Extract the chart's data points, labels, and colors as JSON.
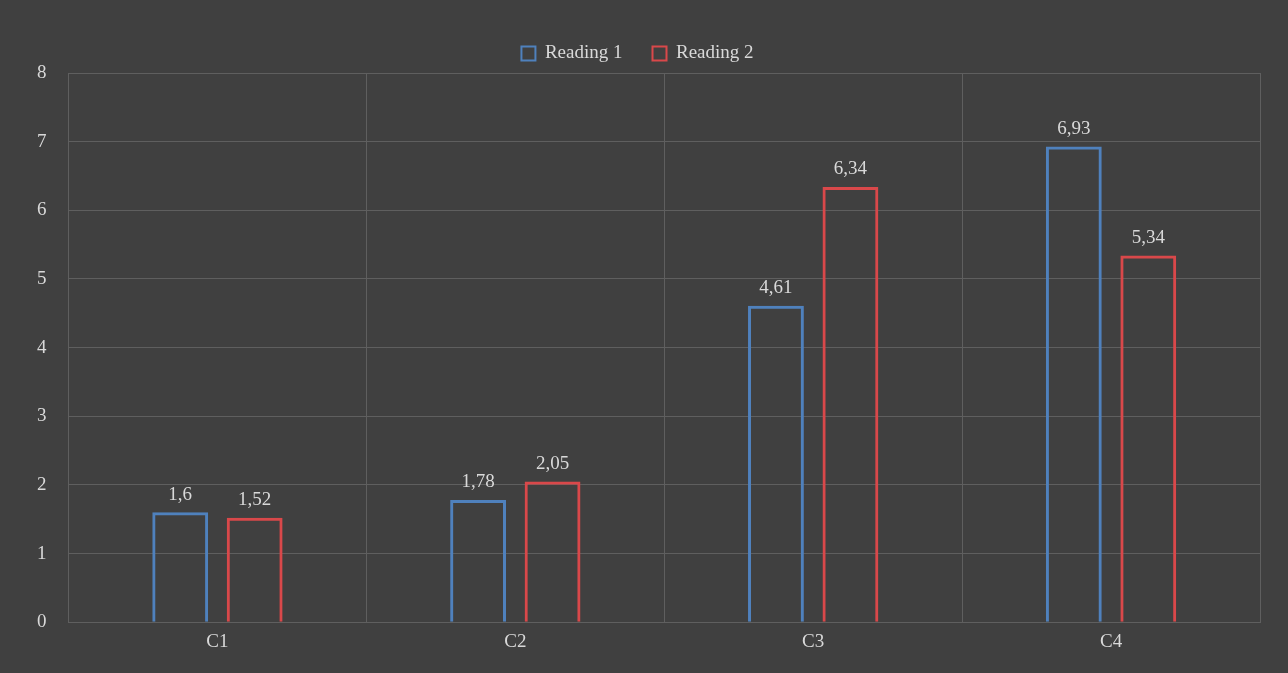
{
  "chart_data": {
    "type": "bar",
    "categories": [
      "C1",
      "C2",
      "C3",
      "C4"
    ],
    "series": [
      {
        "name": "Reading 1",
        "color": "#4f81bd",
        "values": [
          1.6,
          1.78,
          4.61,
          6.93
        ],
        "value_labels": [
          "1,6",
          "1,78",
          "4,61",
          "6,93"
        ]
      },
      {
        "name": "Reading 2",
        "color": "#d9484a",
        "values": [
          1.52,
          2.05,
          6.34,
          5.34
        ],
        "value_labels": [
          "1,52",
          "2,05",
          "6,34",
          "5,34"
        ]
      }
    ],
    "ylim": [
      0,
      8
    ],
    "yticks": [
      0,
      1,
      2,
      3,
      4,
      5,
      6,
      7,
      8
    ],
    "grid": true,
    "legend": "top"
  }
}
